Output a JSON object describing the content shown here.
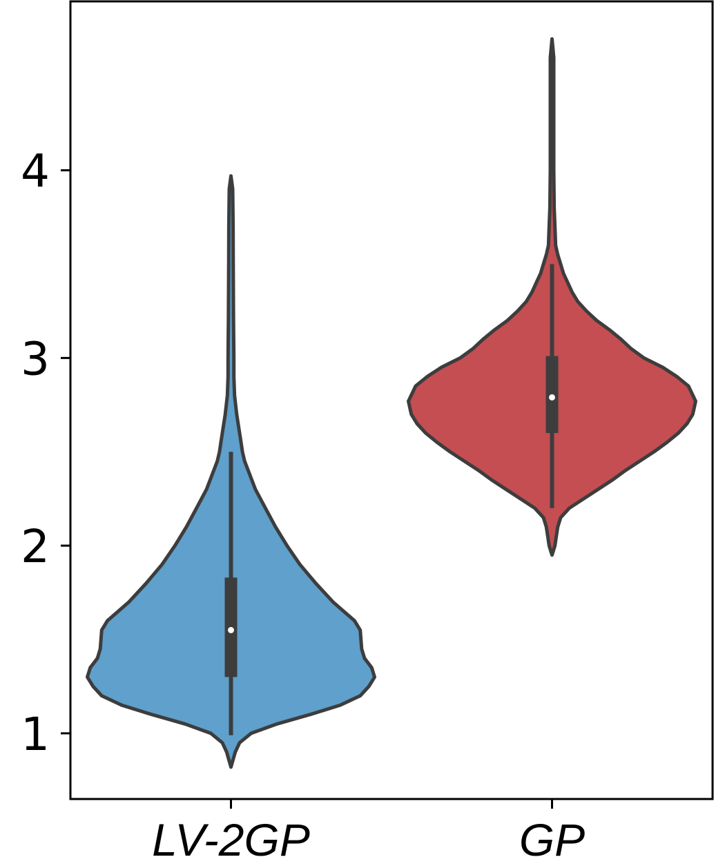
{
  "chart_data": {
    "type": "violin",
    "categories": [
      "LV-2GP",
      "GP"
    ],
    "yticks": [
      1,
      2,
      3,
      4
    ],
    "ytick_labels": [
      "1",
      "2",
      "3",
      "4"
    ],
    "ylim": [
      0.65,
      4.9
    ],
    "xlabel": "",
    "ylabel": "",
    "grid": false,
    "legend": "none",
    "series": [
      {
        "category": "LV-2GP",
        "color": "#5fa0cc",
        "min": 0.82,
        "max": 3.97,
        "whisker_low": 0.99,
        "whisker_high": 2.5,
        "q1": 1.3,
        "median": 1.55,
        "q3": 1.83,
        "density_profile": [
          [
            0.82,
            0.0
          ],
          [
            0.9,
            0.03
          ],
          [
            0.95,
            0.06
          ],
          [
            1.0,
            0.14
          ],
          [
            1.05,
            0.32
          ],
          [
            1.1,
            0.55
          ],
          [
            1.15,
            0.76
          ],
          [
            1.2,
            0.9
          ],
          [
            1.25,
            0.96
          ],
          [
            1.3,
            1.0
          ],
          [
            1.35,
            0.98
          ],
          [
            1.4,
            0.93
          ],
          [
            1.45,
            0.91
          ],
          [
            1.55,
            0.9
          ],
          [
            1.6,
            0.86
          ],
          [
            1.7,
            0.71
          ],
          [
            1.8,
            0.59
          ],
          [
            1.9,
            0.48
          ],
          [
            2.0,
            0.39
          ],
          [
            2.1,
            0.31
          ],
          [
            2.2,
            0.24
          ],
          [
            2.3,
            0.17
          ],
          [
            2.4,
            0.12
          ],
          [
            2.45,
            0.095
          ],
          [
            2.5,
            0.08
          ],
          [
            2.55,
            0.07
          ],
          [
            2.6,
            0.06
          ],
          [
            2.7,
            0.04
          ],
          [
            2.8,
            0.025
          ],
          [
            2.9,
            0.02
          ],
          [
            3.0,
            0.02
          ],
          [
            3.2,
            0.018
          ],
          [
            3.5,
            0.016
          ],
          [
            3.7,
            0.015
          ],
          [
            3.9,
            0.012
          ],
          [
            3.97,
            0.0
          ]
        ]
      },
      {
        "category": "GP",
        "color": "#c44e52",
        "min": 1.95,
        "max": 4.7,
        "whisker_low": 2.2,
        "whisker_high": 3.5,
        "q1": 2.6,
        "median": 2.79,
        "q3": 3.01,
        "density_profile": [
          [
            1.95,
            0.0
          ],
          [
            2.0,
            0.02
          ],
          [
            2.05,
            0.03
          ],
          [
            2.1,
            0.04
          ],
          [
            2.15,
            0.06
          ],
          [
            2.2,
            0.12
          ],
          [
            2.25,
            0.22
          ],
          [
            2.3,
            0.32
          ],
          [
            2.35,
            0.42
          ],
          [
            2.4,
            0.51
          ],
          [
            2.45,
            0.61
          ],
          [
            2.5,
            0.71
          ],
          [
            2.55,
            0.8
          ],
          [
            2.6,
            0.88
          ],
          [
            2.65,
            0.94
          ],
          [
            2.7,
            0.98
          ],
          [
            2.77,
            1.0
          ],
          [
            2.85,
            0.95
          ],
          [
            2.9,
            0.87
          ],
          [
            2.95,
            0.77
          ],
          [
            3.0,
            0.64
          ],
          [
            3.05,
            0.55
          ],
          [
            3.1,
            0.48
          ],
          [
            3.15,
            0.4
          ],
          [
            3.2,
            0.31
          ],
          [
            3.25,
            0.24
          ],
          [
            3.3,
            0.18
          ],
          [
            3.35,
            0.14
          ],
          [
            3.4,
            0.11
          ],
          [
            3.45,
            0.08
          ],
          [
            3.5,
            0.06
          ],
          [
            3.55,
            0.04
          ],
          [
            3.6,
            0.025
          ],
          [
            3.7,
            0.02
          ],
          [
            3.8,
            0.015
          ],
          [
            4.0,
            0.012
          ],
          [
            4.3,
            0.012
          ],
          [
            4.6,
            0.012
          ],
          [
            4.7,
            0.0
          ]
        ]
      }
    ],
    "outline_color": "#3d3d3d",
    "box_color": "#3d3d3d",
    "median_color": "#ffffff"
  }
}
